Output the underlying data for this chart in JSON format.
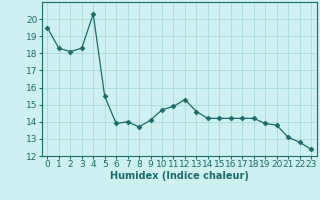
{
  "x": [
    0,
    1,
    2,
    3,
    4,
    5,
    6,
    7,
    8,
    9,
    10,
    11,
    12,
    13,
    14,
    15,
    16,
    17,
    18,
    19,
    20,
    21,
    22,
    23
  ],
  "y": [
    19.5,
    18.3,
    18.1,
    18.3,
    20.3,
    15.5,
    13.9,
    14.0,
    13.7,
    14.1,
    14.7,
    14.9,
    15.3,
    14.6,
    14.2,
    14.2,
    14.2,
    14.2,
    14.2,
    13.9,
    13.8,
    13.1,
    12.8,
    12.4
  ],
  "xlabel": "Humidex (Indice chaleur)",
  "ylim": [
    12,
    21
  ],
  "xlim": [
    -0.5,
    23.5
  ],
  "yticks": [
    12,
    13,
    14,
    15,
    16,
    17,
    18,
    19,
    20
  ],
  "xticks": [
    0,
    1,
    2,
    3,
    4,
    5,
    6,
    7,
    8,
    9,
    10,
    11,
    12,
    13,
    14,
    15,
    16,
    17,
    18,
    19,
    20,
    21,
    22,
    23
  ],
  "line_color": "#1a6b6b",
  "marker": "D",
  "marker_size": 2.5,
  "bg_color": "#cff0f0",
  "grid_color": "#a8dcdc",
  "label_fontsize": 7,
  "tick_fontsize": 6.5
}
